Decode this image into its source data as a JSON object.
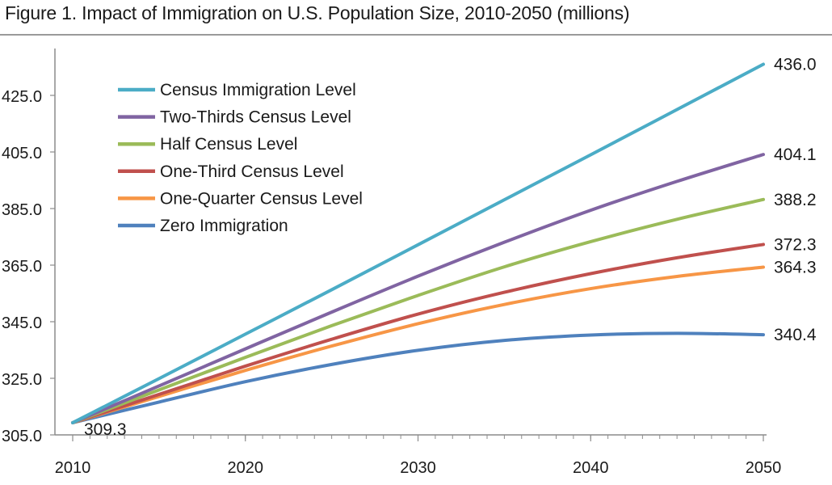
{
  "figure": {
    "title": "Figure 1. Impact of Immigration on U.S. Population Size, 2010-2050 (millions)"
  },
  "chart_data": {
    "type": "line",
    "title": "Figure 1. Impact of Immigration on U.S. Population Size, 2010-2050 (millions)",
    "xlabel": "",
    "ylabel": "",
    "x": [
      2010,
      2015,
      2020,
      2025,
      2030,
      2035,
      2040,
      2045,
      2050
    ],
    "xlim": [
      2010,
      2050
    ],
    "ylim": [
      305,
      445
    ],
    "x_ticks": [
      2010,
      2020,
      2030,
      2040,
      2050
    ],
    "x_tick_labels": [
      "2010",
      "2020",
      "2030",
      "2040",
      "2050"
    ],
    "y_ticks": [
      305,
      325,
      345,
      365,
      385,
      405,
      425
    ],
    "y_tick_labels": [
      "305.0",
      "325.0",
      "345.0",
      "365.0",
      "385.0",
      "405.0",
      "425.0"
    ],
    "grid": false,
    "legend_position": "top-left",
    "series": [
      {
        "name": "Census Immigration Level",
        "color": "#4bacc6",
        "values": [
          309.3,
          324.9,
          340.6,
          356.3,
          372.2,
          388.1,
          404.0,
          420.0,
          436.0
        ],
        "end_label": "436.0"
      },
      {
        "name": "Two-Thirds Census Level",
        "color": "#8064a2",
        "values": [
          309.3,
          322.3,
          335.4,
          348.4,
          361.1,
          373.1,
          384.4,
          394.6,
          404.1
        ],
        "end_label": "404.1"
      },
      {
        "name": "Half Census Level",
        "color": "#9bbb59",
        "values": [
          309.3,
          320.9,
          332.4,
          343.6,
          354.3,
          364.4,
          373.3,
          381.2,
          388.2
        ],
        "end_label": "388.2"
      },
      {
        "name": "One-Third Census Level",
        "color": "#c0504d",
        "values": [
          309.3,
          319.3,
          329.3,
          338.8,
          347.7,
          355.4,
          362.0,
          367.6,
          372.3
        ],
        "end_label": "372.3"
      },
      {
        "name": "One-Quarter Census Level",
        "color": "#f79646",
        "values": [
          309.3,
          318.6,
          327.8,
          336.4,
          344.3,
          351.1,
          356.7,
          361.0,
          364.3
        ],
        "end_label": "364.3"
      },
      {
        "name": "Zero Immigration",
        "color": "#4f81bd",
        "values": [
          309.3,
          316.6,
          323.8,
          329.9,
          334.9,
          338.4,
          340.3,
          340.9,
          340.4
        ],
        "end_label": "340.4"
      }
    ],
    "annotations": [
      {
        "text": "309.3",
        "x": 2010,
        "y": 309.3
      }
    ]
  }
}
